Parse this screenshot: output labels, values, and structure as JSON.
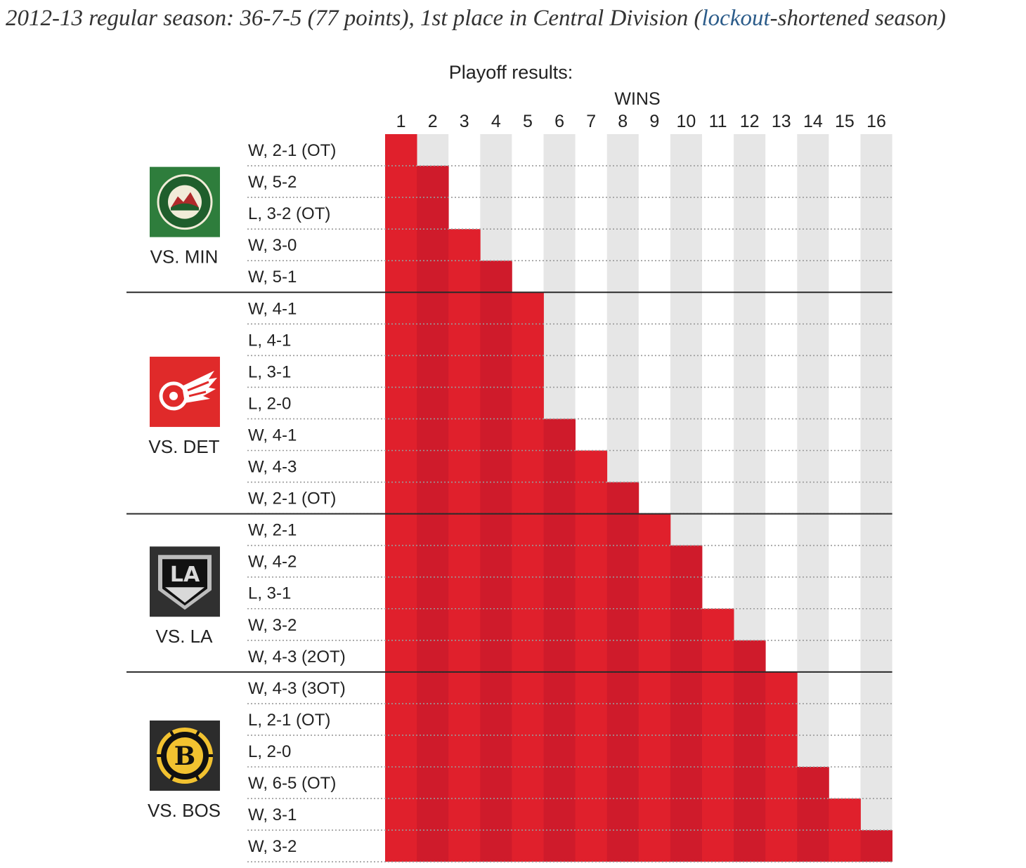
{
  "season_text": {
    "before": "2012-13 regular season: 36-7-5 (77 points), 1st place in Central Division (",
    "link": "lockout",
    "after": "-shortened season)"
  },
  "colors": {
    "red_light": "#e0202c",
    "red_dark": "#cf1b2b",
    "grey_col": "#e6e6e6",
    "min_green": "#2e7d3c",
    "det_red": "#e02a2a",
    "la_dark": "#303030",
    "bos_dark": "#2c2c2c"
  },
  "chart_data": {
    "type": "bar",
    "title": "Playoff results:",
    "xlabel": "WINS",
    "wins_ticks": [
      1,
      2,
      3,
      4,
      5,
      6,
      7,
      8,
      9,
      10,
      11,
      12,
      13,
      14,
      15,
      16
    ],
    "series": [
      {
        "opponent": "VS. MIN",
        "logo": "minnesota-wild-logo",
        "games": [
          {
            "result": "W, 2-1 (OT)",
            "cumulative_wins": 1
          },
          {
            "result": "W, 5-2",
            "cumulative_wins": 2
          },
          {
            "result": "L, 3-2 (OT)",
            "cumulative_wins": 2
          },
          {
            "result": "W, 3-0",
            "cumulative_wins": 3
          },
          {
            "result": "W, 5-1",
            "cumulative_wins": 4
          }
        ]
      },
      {
        "opponent": "VS. DET",
        "logo": "detroit-red-wings-logo",
        "games": [
          {
            "result": "W, 4-1",
            "cumulative_wins": 5
          },
          {
            "result": "L, 4-1",
            "cumulative_wins": 5
          },
          {
            "result": "L, 3-1",
            "cumulative_wins": 5
          },
          {
            "result": "L, 2-0",
            "cumulative_wins": 5
          },
          {
            "result": "W, 4-1",
            "cumulative_wins": 6
          },
          {
            "result": "W, 4-3",
            "cumulative_wins": 7
          },
          {
            "result": "W, 2-1 (OT)",
            "cumulative_wins": 8
          }
        ]
      },
      {
        "opponent": "VS. LA",
        "logo": "los-angeles-kings-logo",
        "games": [
          {
            "result": "W, 2-1",
            "cumulative_wins": 9
          },
          {
            "result": "W, 4-2",
            "cumulative_wins": 10
          },
          {
            "result": "L, 3-1",
            "cumulative_wins": 10
          },
          {
            "result": "W, 3-2",
            "cumulative_wins": 11
          },
          {
            "result": "W, 4-3 (2OT)",
            "cumulative_wins": 12
          }
        ]
      },
      {
        "opponent": "VS. BOS",
        "logo": "boston-bruins-logo",
        "games": [
          {
            "result": "W, 4-3 (3OT)",
            "cumulative_wins": 13
          },
          {
            "result": "L, 2-1 (OT)",
            "cumulative_wins": 13
          },
          {
            "result": "L, 2-0",
            "cumulative_wins": 13
          },
          {
            "result": "W, 6-5 (OT)",
            "cumulative_wins": 14
          },
          {
            "result": "W, 3-1",
            "cumulative_wins": 15
          },
          {
            "result": "W, 3-2",
            "cumulative_wins": 16
          }
        ]
      }
    ]
  }
}
